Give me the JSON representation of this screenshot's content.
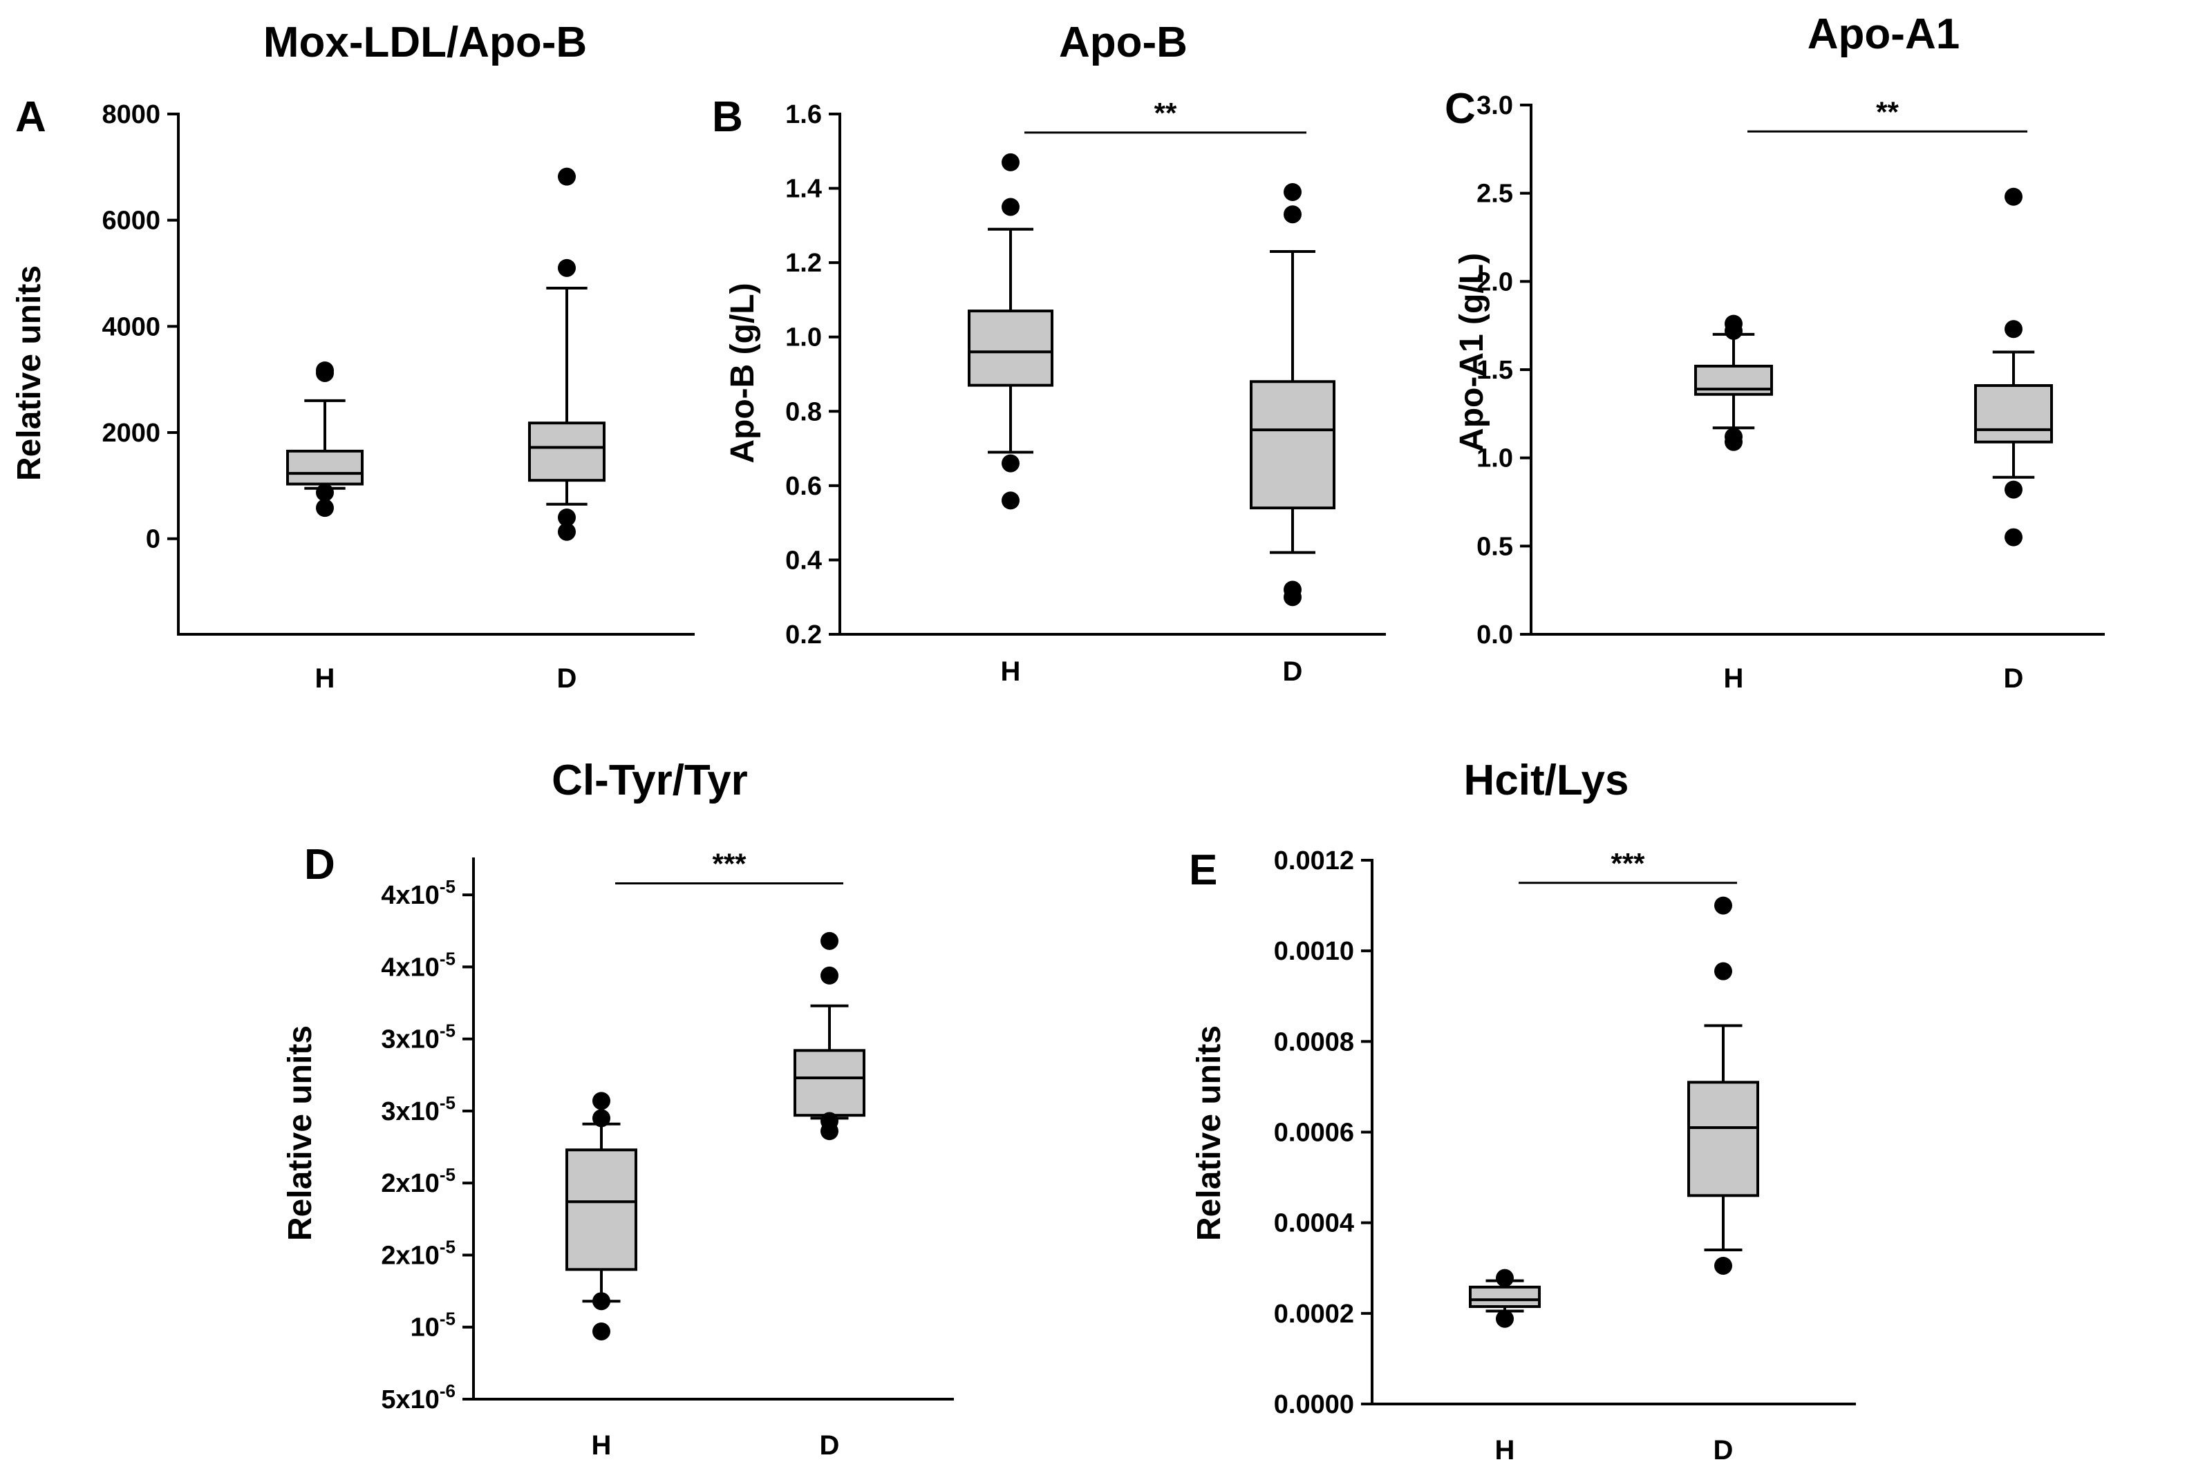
{
  "figure": {
    "box_fill": "#c8c8c8",
    "ink": "#000000",
    "background": "#ffffff"
  },
  "chart_data": [
    {
      "id": "A",
      "type": "boxplot",
      "panel_letter": "A",
      "title": "Mox-LDL/Apo-B",
      "ylabel": "Relative units",
      "xlabel": "",
      "ylim": [
        -1800,
        8000
      ],
      "yticks": [
        {
          "value": 0,
          "label": "0"
        },
        {
          "value": 2000,
          "label": "2000"
        },
        {
          "value": 4000,
          "label": "4000"
        },
        {
          "value": 6000,
          "label": "6000"
        },
        {
          "value": 8000,
          "label": "8000"
        }
      ],
      "categories": [
        "H",
        "D"
      ],
      "boxes": [
        {
          "category": "H",
          "whisker_low": 950,
          "q1": 1030,
          "median": 1230,
          "q3": 1650,
          "whisker_high": 2600,
          "outliers": [
            3120,
            3170,
            870,
            580
          ]
        },
        {
          "category": "D",
          "whisker_low": 650,
          "q1": 1100,
          "median": 1720,
          "q3": 2180,
          "whisker_high": 4720,
          "outliers": [
            6820,
            5100,
            400,
            130
          ]
        }
      ],
      "significance": null
    },
    {
      "id": "B",
      "type": "boxplot",
      "panel_letter": "B",
      "title": "Apo-B",
      "ylabel": "Apo-B (g/L)",
      "xlabel": "",
      "ylim": [
        0.2,
        1.6
      ],
      "yticks": [
        {
          "value": 0.2,
          "label": "0.2"
        },
        {
          "value": 0.4,
          "label": "0.4"
        },
        {
          "value": 0.6,
          "label": "0.6"
        },
        {
          "value": 0.8,
          "label": "0.8"
        },
        {
          "value": 1.0,
          "label": "1.0"
        },
        {
          "value": 1.2,
          "label": "1.2"
        },
        {
          "value": 1.4,
          "label": "1.4"
        },
        {
          "value": 1.6,
          "label": "1.6"
        }
      ],
      "categories": [
        "H",
        "D"
      ],
      "boxes": [
        {
          "category": "H",
          "whisker_low": 0.69,
          "q1": 0.87,
          "median": 0.96,
          "q3": 1.07,
          "whisker_high": 1.29,
          "outliers": [
            1.47,
            1.35,
            0.66,
            0.56
          ]
        },
        {
          "category": "D",
          "whisker_low": 0.42,
          "q1": 0.54,
          "median": 0.75,
          "q3": 0.88,
          "whisker_high": 1.23,
          "outliers": [
            1.39,
            1.33,
            0.32,
            0.3
          ]
        }
      ],
      "significance": {
        "label": "**",
        "from": "H",
        "to": "D",
        "y": 1.55
      }
    },
    {
      "id": "C",
      "type": "boxplot",
      "panel_letter": "C",
      "title": "Apo-A1",
      "ylabel": "Apo-A1 (g/L)",
      "xlabel": "",
      "ylim": [
        0.0,
        3.0
      ],
      "yticks": [
        {
          "value": 0.0,
          "label": "0.0"
        },
        {
          "value": 0.5,
          "label": "0.5"
        },
        {
          "value": 1.0,
          "label": "1.0"
        },
        {
          "value": 1.5,
          "label": "1.5"
        },
        {
          "value": 2.0,
          "label": "2.0"
        },
        {
          "value": 2.5,
          "label": "2.5"
        },
        {
          "value": 3.0,
          "label": "3.0"
        }
      ],
      "categories": [
        "H",
        "D"
      ],
      "boxes": [
        {
          "category": "H",
          "whisker_low": 1.17,
          "q1": 1.36,
          "median": 1.39,
          "q3": 1.52,
          "whisker_high": 1.7,
          "outliers": [
            1.76,
            1.72,
            1.12,
            1.09
          ]
        },
        {
          "category": "D",
          "whisker_low": 0.89,
          "q1": 1.09,
          "median": 1.16,
          "q3": 1.41,
          "whisker_high": 1.6,
          "outliers": [
            2.48,
            1.73,
            0.82,
            0.55
          ]
        }
      ],
      "significance": {
        "label": "**",
        "from": "H",
        "to": "D",
        "y": 2.85
      }
    },
    {
      "id": "D",
      "type": "boxplot",
      "panel_letter": "D",
      "title": "Cl-Tyr/Tyr",
      "ylabel": "Relative units",
      "xlabel": "",
      "ylim": [
        5e-06,
        4.25e-05
      ],
      "yticks": [
        {
          "value": 5e-06,
          "mant": "5x10",
          "exp": "-6"
        },
        {
          "value": 1e-05,
          "mant": "10",
          "exp": "-5"
        },
        {
          "value": 1.5e-05,
          "mant": "2x10",
          "exp": "-5"
        },
        {
          "value": 2e-05,
          "mant": "2x10",
          "exp": "-5"
        },
        {
          "value": 2.5e-05,
          "mant": "3x10",
          "exp": "-5"
        },
        {
          "value": 3e-05,
          "mant": "3x10",
          "exp": "-5"
        },
        {
          "value": 3.5e-05,
          "mant": "4x10",
          "exp": "-5"
        },
        {
          "value": 4e-05,
          "mant": "4x10",
          "exp": "-5"
        }
      ],
      "categories": [
        "H",
        "D"
      ],
      "boxes": [
        {
          "category": "H",
          "whisker_low": 1.18e-05,
          "q1": 1.4e-05,
          "median": 1.87e-05,
          "q3": 2.23e-05,
          "whisker_high": 2.41e-05,
          "outliers": [
            2.57e-05,
            2.45e-05,
            1.18e-05,
            9.7e-06
          ]
        },
        {
          "category": "D",
          "whisker_low": 2.45e-05,
          "q1": 2.47e-05,
          "median": 2.73e-05,
          "q3": 2.92e-05,
          "whisker_high": 3.23e-05,
          "outliers": [
            3.68e-05,
            3.44e-05,
            2.43e-05,
            2.36e-05
          ]
        }
      ],
      "significance": {
        "label": "***",
        "from": "H",
        "to": "D",
        "y": 4.08e-05
      }
    },
    {
      "id": "E",
      "type": "boxplot",
      "panel_letter": "E",
      "title": "Hcit/Lys",
      "ylabel": "Relative units",
      "xlabel": "",
      "ylim": [
        0.0,
        0.0012
      ],
      "yticks": [
        {
          "value": 0.0,
          "label": "0.0000"
        },
        {
          "value": 0.0002,
          "label": "0.0002"
        },
        {
          "value": 0.0004,
          "label": "0.0004"
        },
        {
          "value": 0.0006,
          "label": "0.0006"
        },
        {
          "value": 0.0008,
          "label": "0.0008"
        },
        {
          "value": 0.001,
          "label": "0.0010"
        },
        {
          "value": 0.0012,
          "label": "0.0012"
        }
      ],
      "categories": [
        "H",
        "D"
      ],
      "boxes": [
        {
          "category": "H",
          "whisker_low": 0.000205,
          "q1": 0.000215,
          "median": 0.00023,
          "q3": 0.000258,
          "whisker_high": 0.000272,
          "outliers": [
            0.000278,
            0.000188
          ]
        },
        {
          "category": "D",
          "whisker_low": 0.00034,
          "q1": 0.00046,
          "median": 0.00061,
          "q3": 0.00071,
          "whisker_high": 0.000835,
          "outliers": [
            0.0011,
            0.000955,
            0.000305
          ]
        }
      ],
      "significance": {
        "label": "***",
        "from": "H",
        "to": "D",
        "y": 0.00115
      }
    }
  ]
}
